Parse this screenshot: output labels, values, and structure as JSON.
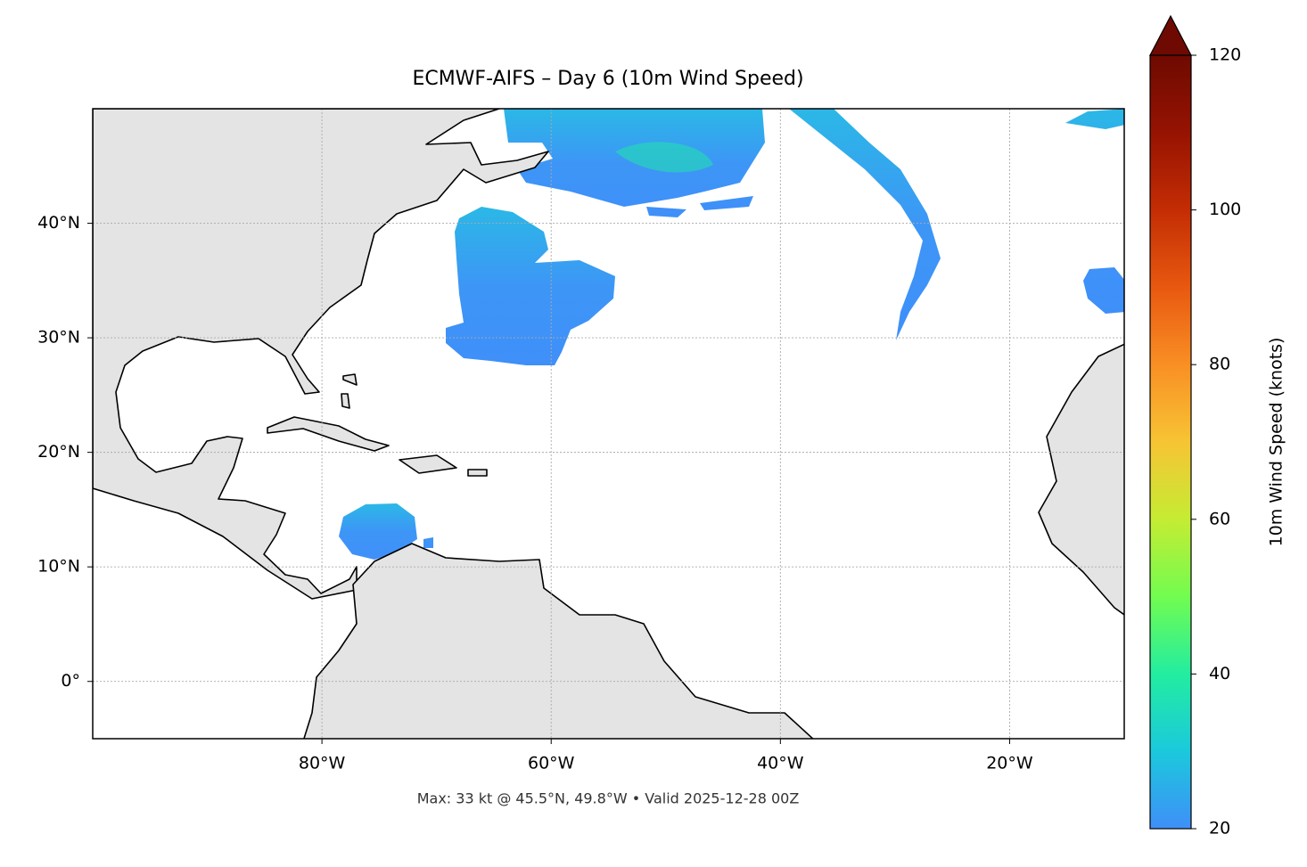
{
  "chart_data": {
    "type": "map",
    "title": "ECMWF-AIFS – Day 6 (10m Wind Speed)",
    "footnote": "Max: 33 kt @ 45.5°N, 49.8°W • Valid 2025-12-28 00Z",
    "xlim": [
      -100,
      -10
    ],
    "ylim": [
      -5,
      50
    ],
    "xticks": [
      {
        "value": -80,
        "label": "80°W"
      },
      {
        "value": -60,
        "label": "60°W"
      },
      {
        "value": -40,
        "label": "40°W"
      },
      {
        "value": -20,
        "label": "20°W"
      }
    ],
    "yticks": [
      {
        "value": 0,
        "label": "0°"
      },
      {
        "value": 10,
        "label": "10°N"
      },
      {
        "value": 20,
        "label": "20°N"
      },
      {
        "value": 30,
        "label": "30°N"
      },
      {
        "value": 40,
        "label": "40°N"
      }
    ],
    "grid": true,
    "colorbar": {
      "label": "10m Wind Speed (knots)",
      "lim": [
        20,
        120
      ],
      "ticks": [
        20,
        40,
        60,
        80,
        100,
        120
      ],
      "extend": "max",
      "colors": [
        "#3f8ff9",
        "#1bc9dc",
        "#22eda0",
        "#72fc50",
        "#c5ec33",
        "#f7c434",
        "#f98f24",
        "#e85810",
        "#c42d04",
        "#961302",
        "#6e0a01"
      ]
    }
  }
}
